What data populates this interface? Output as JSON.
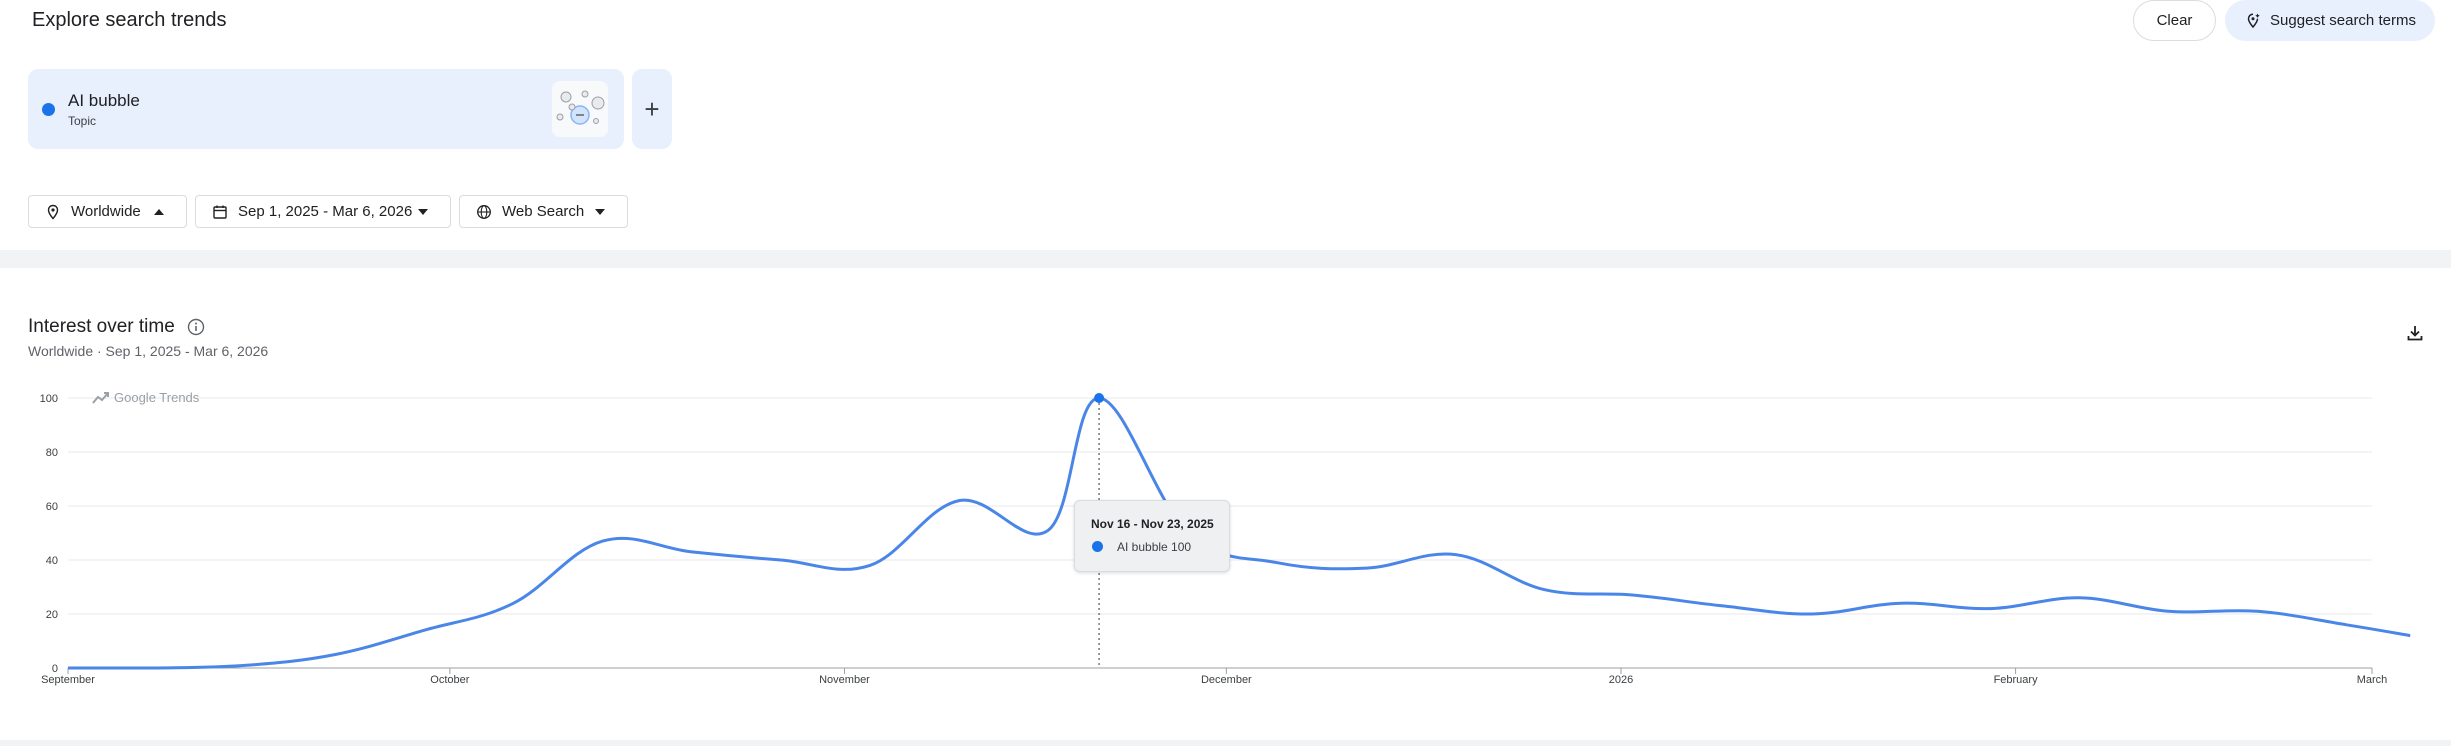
{
  "header": {
    "title": "Explore search trends",
    "clear_label": "Clear",
    "suggest_label": "Suggest search terms"
  },
  "term": {
    "name": "AI bubble",
    "type": "Topic",
    "color": "#1a73e8"
  },
  "filters": {
    "geo": "Worldwide",
    "date_range": "Sep 1, 2025 - Mar 6, 2026",
    "property": "Web Search"
  },
  "chart_section": {
    "title": "Interest over time",
    "subtitle": "Worldwide · Sep 1, 2025 - Mar 6, 2026",
    "brand": "Google Trends"
  },
  "tooltip": {
    "date": "Nov 16 - Nov 23, 2025",
    "label": "AI bubble 100"
  },
  "chart_data": {
    "type": "line",
    "title": "Interest over time",
    "xlabel": "",
    "ylabel": "",
    "ylim": [
      0,
      100
    ],
    "yticks": [
      0,
      20,
      40,
      60,
      80,
      100
    ],
    "xlim": [
      "2025-09-01",
      "2026-03-01"
    ],
    "xticks": [
      {
        "label": "September",
        "date": "2025-09-01"
      },
      {
        "label": "October",
        "date": "2025-10-01"
      },
      {
        "label": "November",
        "date": "2025-11-01"
      },
      {
        "label": "December",
        "date": "2025-12-01"
      },
      {
        "label": "2026",
        "date": "2026-01-01"
      },
      {
        "label": "February",
        "date": "2026-02-01"
      },
      {
        "label": "March",
        "date": "2026-03-01"
      }
    ],
    "grid": true,
    "series": [
      {
        "name": "AI bubble",
        "color": "#4a86e8",
        "points": [
          {
            "x": "2025-09-01",
            "y": 0
          },
          {
            "x": "2025-09-08",
            "y": 0
          },
          {
            "x": "2025-09-15",
            "y": 1
          },
          {
            "x": "2025-09-22",
            "y": 5
          },
          {
            "x": "2025-09-29",
            "y": 14
          },
          {
            "x": "2025-10-06",
            "y": 24
          },
          {
            "x": "2025-10-13",
            "y": 47
          },
          {
            "x": "2025-10-20",
            "y": 43
          },
          {
            "x": "2025-10-27",
            "y": 40
          },
          {
            "x": "2025-11-03",
            "y": 38
          },
          {
            "x": "2025-11-10",
            "y": 62
          },
          {
            "x": "2025-11-17",
            "y": 51
          },
          {
            "x": "2025-11-21",
            "y": 100
          },
          {
            "x": "2025-11-28",
            "y": 50
          },
          {
            "x": "2025-12-05",
            "y": 39
          },
          {
            "x": "2025-12-12",
            "y": 37
          },
          {
            "x": "2025-12-19",
            "y": 42
          },
          {
            "x": "2025-12-26",
            "y": 29
          },
          {
            "x": "2026-01-02",
            "y": 27
          },
          {
            "x": "2026-01-09",
            "y": 23
          },
          {
            "x": "2026-01-16",
            "y": 20
          },
          {
            "x": "2026-01-23",
            "y": 24
          },
          {
            "x": "2026-01-30",
            "y": 22
          },
          {
            "x": "2026-02-06",
            "y": 26
          },
          {
            "x": "2026-02-13",
            "y": 21
          },
          {
            "x": "2026-02-20",
            "y": 21
          },
          {
            "x": "2026-02-27",
            "y": 16
          },
          {
            "x": "2026-03-04",
            "y": 12
          }
        ]
      }
    ],
    "highlight": {
      "x": "2025-11-21",
      "y": 100
    }
  }
}
